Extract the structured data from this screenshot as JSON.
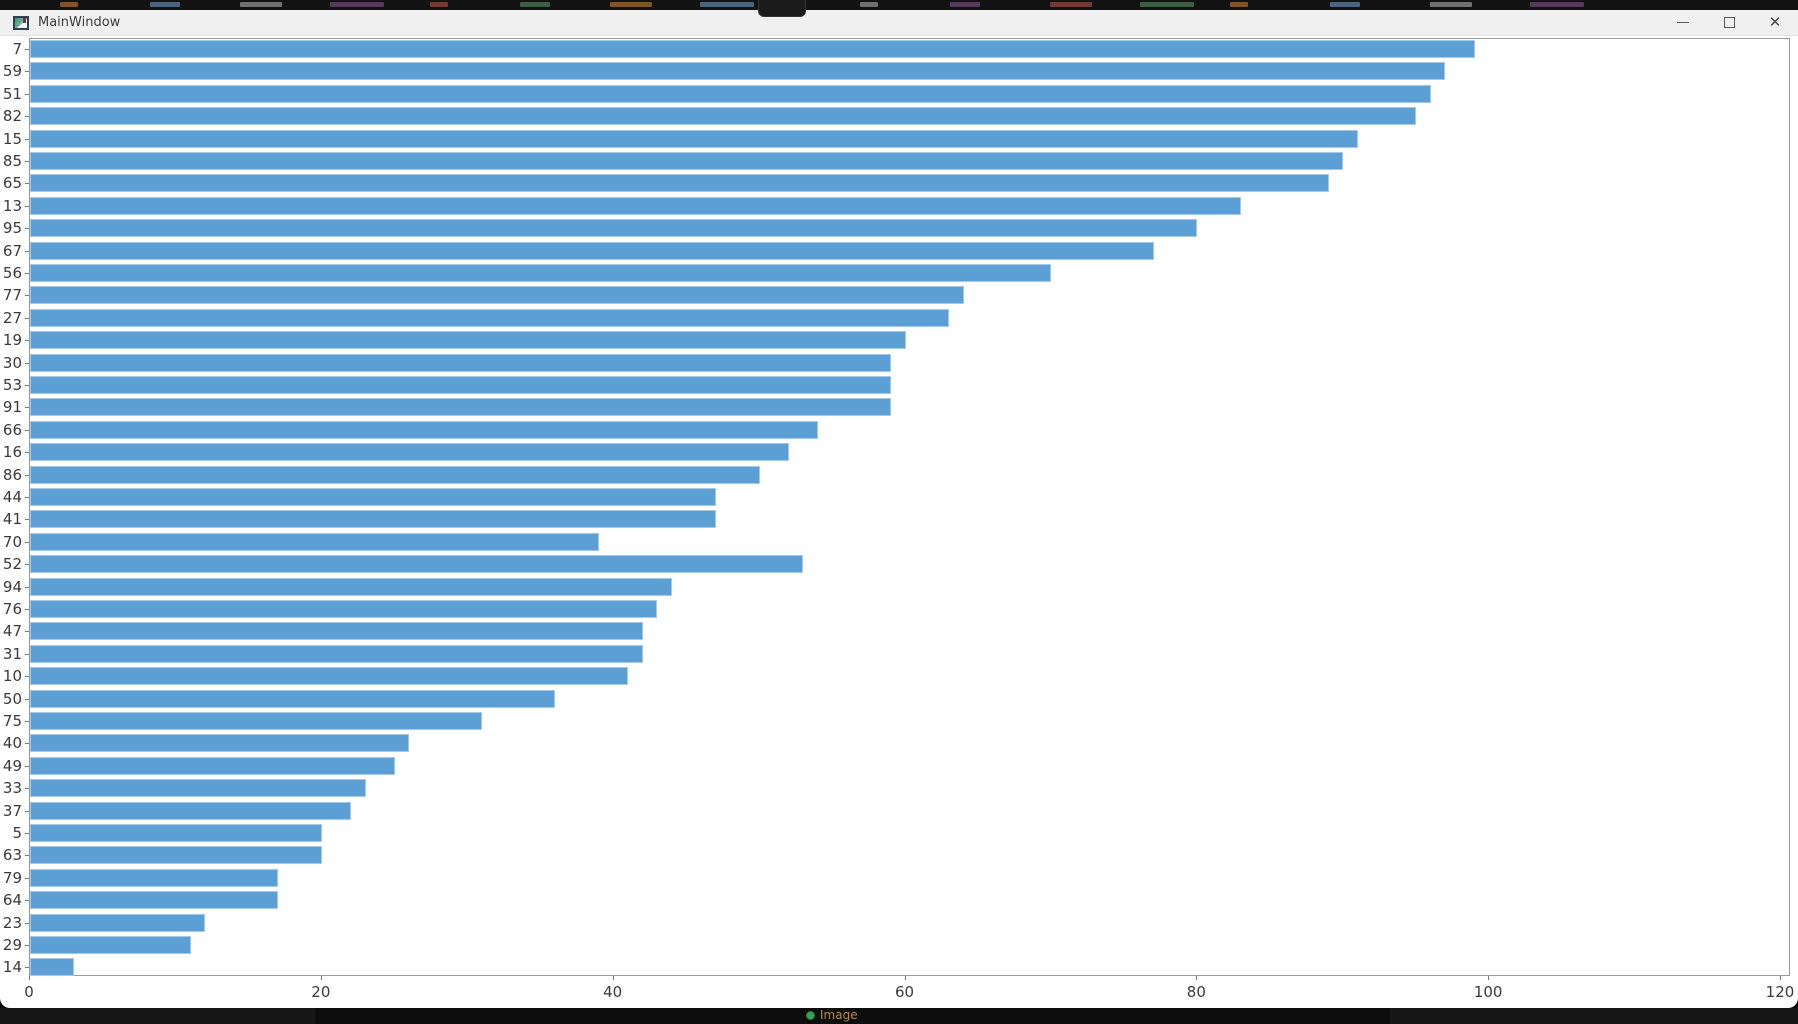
{
  "window": {
    "title": "MainWindow",
    "controls": {
      "minimize": "minimize",
      "maximize": "maximize",
      "close_glyph": "✕"
    }
  },
  "background": {
    "taskbar_app_label": "Image"
  },
  "chart_data": {
    "type": "bar",
    "orientation": "horizontal",
    "title": "",
    "xlabel": "",
    "ylabel": "",
    "categories": [
      "7",
      "59",
      "51",
      "82",
      "15",
      "85",
      "65",
      "13",
      "95",
      "67",
      "56",
      "77",
      "27",
      "19",
      "30",
      "53",
      "91",
      "66",
      "16",
      "86",
      "44",
      "41",
      "70",
      "52",
      "94",
      "76",
      "47",
      "31",
      "10",
      "50",
      "75",
      "40",
      "49",
      "33",
      "37",
      "5",
      "63",
      "79",
      "64",
      "23",
      "29",
      "14"
    ],
    "values": [
      99,
      97,
      96,
      95,
      91,
      90,
      89,
      83,
      80,
      77,
      70,
      64,
      63,
      60,
      59,
      59,
      59,
      54,
      52,
      50,
      47,
      47,
      39,
      53,
      44,
      43,
      42,
      42,
      41,
      36,
      31,
      26,
      25,
      23,
      22,
      20,
      20,
      17,
      17,
      12,
      11,
      3
    ],
    "xticks": [
      0,
      20,
      40,
      60,
      80,
      100,
      120
    ],
    "xlim": [
      0,
      120.6
    ],
    "grid": false,
    "legend": false,
    "bar_color": "#5b9fd4",
    "bar_edge_color": "#a6c9e4",
    "background": "#ffffff"
  }
}
